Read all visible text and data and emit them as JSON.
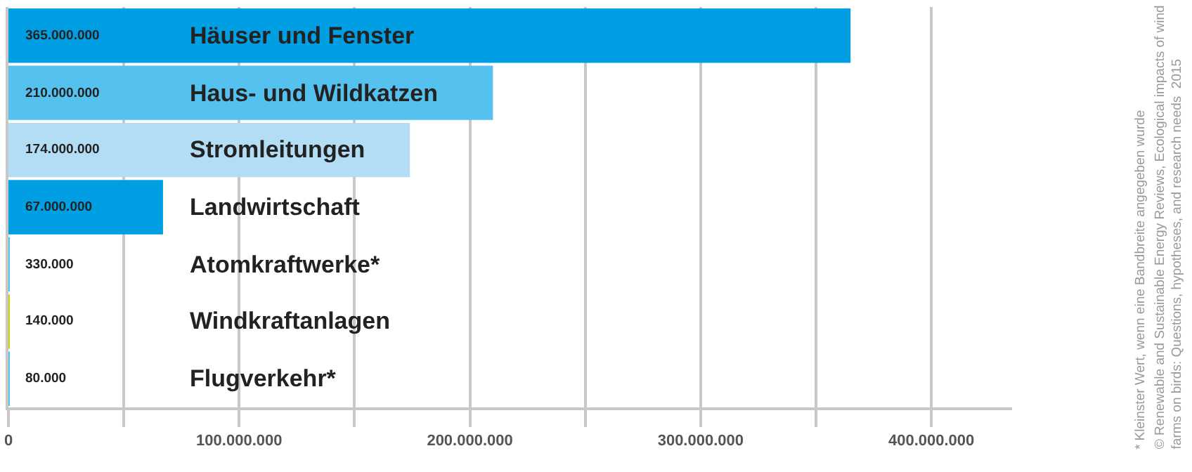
{
  "chart_data": {
    "type": "bar",
    "orientation": "horizontal",
    "categories": [
      "Häuser und Fenster",
      "Haus- und Wildkatzen",
      "Stromleitungen",
      "Landwirtschaft",
      "Atomkraftwerke*",
      "Windkraftanlagen",
      "Flugverkehr*"
    ],
    "values": [
      365000000,
      210000000,
      174000000,
      67000000,
      330000,
      140000,
      80000
    ],
    "value_labels": [
      "365.000.000",
      "210.000.000",
      "174.000.000",
      "67.000.000",
      "330.000",
      "140.000",
      "80.000"
    ],
    "colors": [
      "#009fe3",
      "#55c1ef",
      "#b3dcf5",
      "#009fe3",
      "#55c1ef",
      "#c8d400",
      "#55c1ef"
    ],
    "xlim": [
      0,
      435000000
    ],
    "xticks": [
      0,
      {
        "value": 50000000,
        "label": null
      },
      {
        "value": 100000000,
        "label": "100.000.000"
      },
      {
        "value": 150000000,
        "label": null
      },
      {
        "value": 200000000,
        "label": "200.000.000"
      },
      {
        "value": 250000000,
        "label": null
      },
      {
        "value": 300000000,
        "label": "300.000.000"
      },
      {
        "value": 350000000,
        "label": null
      },
      {
        "value": 400000000,
        "label": "400.000.000"
      }
    ],
    "grid": "x",
    "annotations": [
      "* Kleinster Wert, wenn eine Bandbreite angegeben wurde",
      "© Renewable and Sustainable Energy Reviews, Ecological impacts of wind",
      "farms on birds: Questions, hypotheses, and research needs  2015"
    ]
  }
}
